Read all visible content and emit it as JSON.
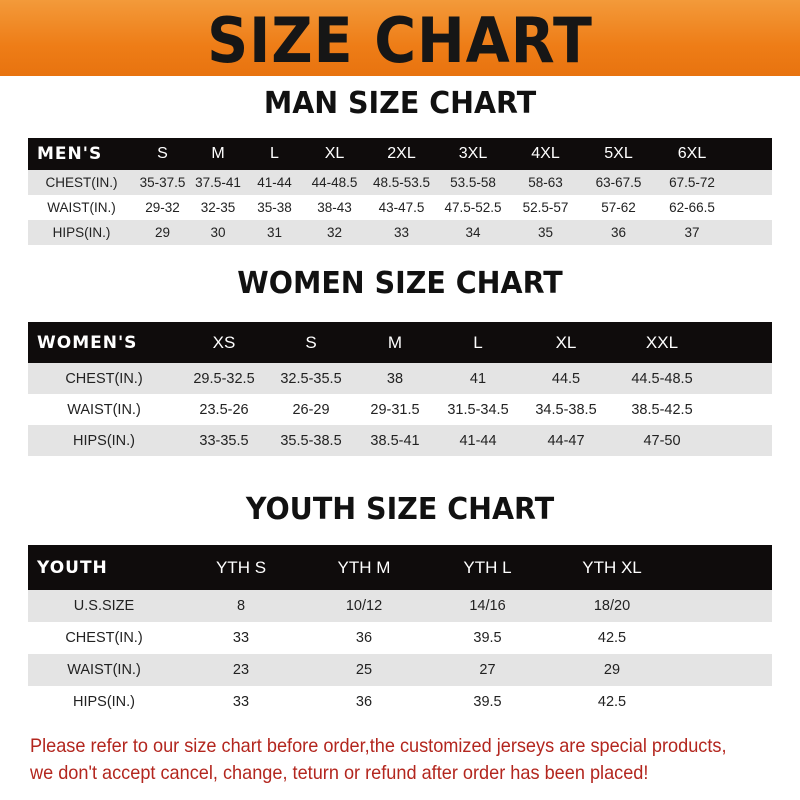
{
  "banner_title": "SIZE CHART",
  "men": {
    "title": "MAN SIZE CHART",
    "header": [
      "MEN'S",
      "S",
      "M",
      "L",
      "XL",
      "2XL",
      "3XL",
      "4XL",
      "5XL",
      "6XL"
    ],
    "rows": [
      [
        "CHEST(IN.)",
        "35-37.5",
        "37.5-41",
        "41-44",
        "44-48.5",
        "48.5-53.5",
        "53.5-58",
        "58-63",
        "63-67.5",
        "67.5-72"
      ],
      [
        "WAIST(IN.)",
        "29-32",
        "32-35",
        "35-38",
        "38-43",
        "43-47.5",
        "47.5-52.5",
        "52.5-57",
        "57-62",
        "62-66.5"
      ],
      [
        "HIPS(IN.)",
        "29",
        "30",
        "31",
        "32",
        "33",
        "34",
        "35",
        "36",
        "37"
      ]
    ]
  },
  "women": {
    "title": "WOMEN SIZE CHART",
    "header": [
      "WOMEN'S",
      "XS",
      "S",
      "M",
      "L",
      "XL",
      "XXL"
    ],
    "rows": [
      [
        "CHEST(IN.)",
        "29.5-32.5",
        "32.5-35.5",
        "38",
        "41",
        "44.5",
        "44.5-48.5"
      ],
      [
        "WAIST(IN.)",
        "23.5-26",
        "26-29",
        "29-31.5",
        "31.5-34.5",
        "34.5-38.5",
        "38.5-42.5"
      ],
      [
        "HIPS(IN.)",
        "33-35.5",
        "35.5-38.5",
        "38.5-41",
        "41-44",
        "44-47",
        "47-50"
      ]
    ]
  },
  "youth": {
    "title": "YOUTH SIZE CHART",
    "header": [
      "YOUTH",
      "YTH S",
      "YTH M",
      "YTH L",
      "YTH XL"
    ],
    "rows": [
      [
        "U.S.SIZE",
        "8",
        "10/12",
        "14/16",
        "18/20"
      ],
      [
        "CHEST(IN.)",
        "33",
        "36",
        "39.5",
        "42.5"
      ],
      [
        "WAIST(IN.)",
        "23",
        "25",
        "27",
        "29"
      ],
      [
        "HIPS(IN.)",
        "33",
        "36",
        "39.5",
        "42.5"
      ]
    ]
  },
  "footer": {
    "line1": "Please refer to our size chart before order,the customized jerseys are special products,",
    "line2": "we don't accept cancel, change, teturn or refund after order has been placed!"
  },
  "colors": {
    "banner": "#ee7d17",
    "header_row": "#0f0c0c",
    "stripe": "#e4e4e4",
    "footer_text": "#b3261e"
  }
}
